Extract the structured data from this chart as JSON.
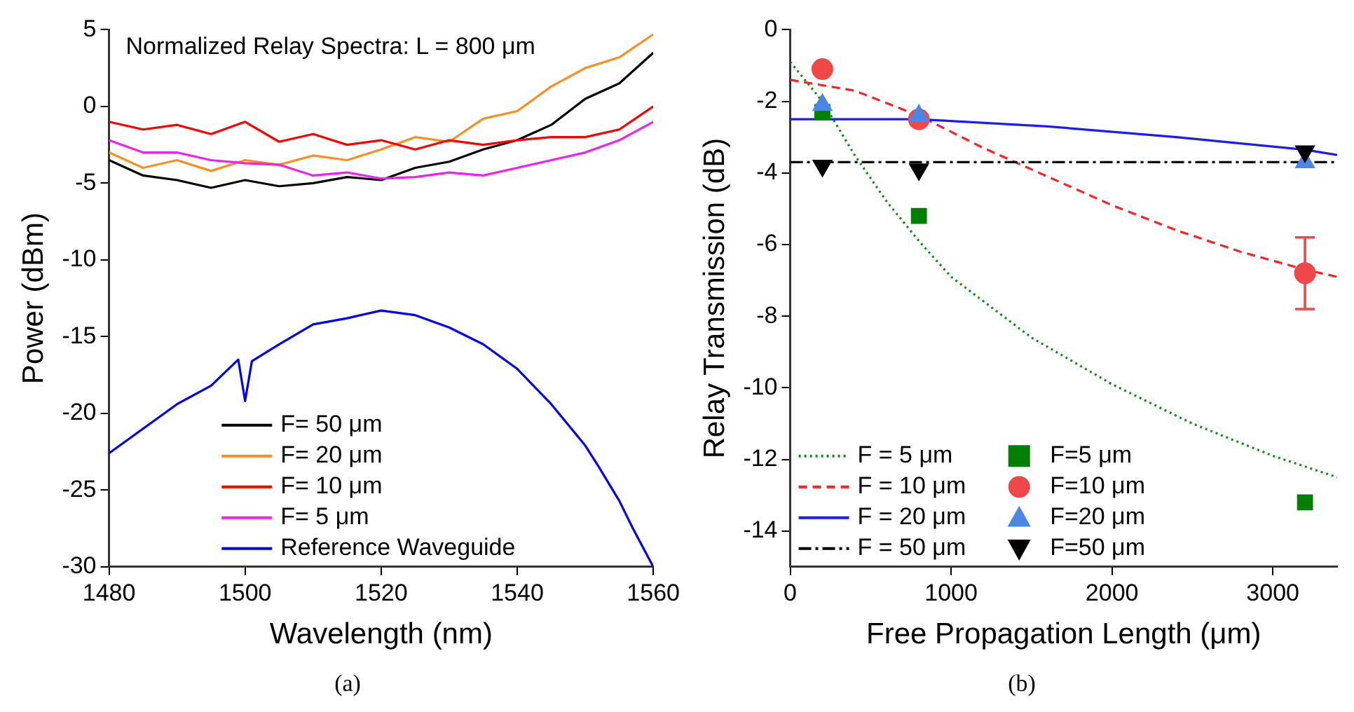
{
  "chart_data": [
    {
      "type": "line",
      "title": "Normalized Relay Spectra: L = 800 μm",
      "xlabel": "Wavelength (nm)",
      "ylabel": "Power (dBm)",
      "annotations": [
        "(a)"
      ],
      "legend": "bottom",
      "marker": "none",
      "x": [
        1480,
        1485,
        1490,
        1495,
        1500,
        1505,
        1510,
        1515,
        1520,
        1525,
        1530,
        1535,
        1540,
        1545,
        1550,
        1555,
        1560
      ],
      "xlim": [
        1480,
        1560
      ],
      "xticks": [
        1480,
        1500,
        1520,
        1540,
        1560
      ],
      "ylim": [
        -30,
        5
      ],
      "yticks": [
        -30,
        -25,
        -20,
        -15,
        -10,
        -5,
        0,
        5
      ],
      "series": [
        {
          "name": "F= 50 μm",
          "color": "#000000",
          "values": [
            -3.5,
            -4.5,
            -4.8,
            -5.3,
            -4.8,
            -5.2,
            -5.0,
            -4.6,
            -4.8,
            -4.0,
            -3.6,
            -2.8,
            -2.2,
            -1.2,
            0.5,
            1.5,
            3.5
          ]
        },
        {
          "name": "F= 20 μm",
          "color": "#f7901e",
          "values": [
            -3.0,
            -4.0,
            -3.5,
            -4.2,
            -3.5,
            -3.8,
            -3.2,
            -3.5,
            -2.8,
            -2.0,
            -2.3,
            -0.8,
            -0.3,
            1.3,
            2.5,
            3.2,
            4.7
          ]
        },
        {
          "name": "F= 10 μm",
          "color": "#ff0000",
          "values": [
            -1.0,
            -1.5,
            -1.2,
            -1.8,
            -1.0,
            -2.3,
            -1.8,
            -2.5,
            -2.2,
            -2.8,
            -2.2,
            -2.5,
            -2.2,
            -2.0,
            -2.0,
            -1.5,
            0.0
          ]
        },
        {
          "name": "F= 5 μm",
          "color": "#ee22ee",
          "values": [
            -2.2,
            -3.0,
            -3.0,
            -3.5,
            -3.7,
            -3.8,
            -4.5,
            -4.3,
            -4.7,
            -4.6,
            -4.3,
            -4.5,
            -4.0,
            -3.5,
            -3.0,
            -2.2,
            -1.0
          ]
        },
        {
          "name": "Reference Waveguide",
          "color": "#0000ff",
          "x": [
            1480,
            1485,
            1490,
            1495,
            1499,
            1500,
            1501,
            1505,
            1510,
            1515,
            1520,
            1525,
            1530,
            1535,
            1540,
            1545,
            1550,
            1552,
            1555,
            1557,
            1560
          ],
          "values": [
            -22.6,
            -21.0,
            -19.4,
            -18.2,
            -16.5,
            -19.2,
            -16.6,
            -15.5,
            -14.2,
            -13.8,
            -13.3,
            -13.6,
            -14.4,
            -15.5,
            -17.1,
            -19.4,
            -22.1,
            -23.5,
            -25.7,
            -27.5,
            -30.0
          ]
        }
      ]
    },
    {
      "type": "scatter",
      "xlabel": "Free Propagation Length (μm)",
      "ylabel": "Relay Transmission (dB)",
      "annotations": [
        "(b)"
      ],
      "legend": "bottom left",
      "xlim": [
        0,
        3400
      ],
      "xticks": [
        0,
        1000,
        2000,
        3000
      ],
      "ylim": [
        -15,
        0
      ],
      "yticks": [
        -14,
        -12,
        -10,
        -8,
        -6,
        -4,
        -2,
        0
      ],
      "series": [
        {
          "name": "F = 5 μm",
          "type": "line",
          "color": "#109010",
          "line_style": "dotted",
          "marker": "none",
          "x": [
            0,
            200,
            400,
            600,
            800,
            1000,
            1500,
            2000,
            2500,
            3000,
            3400
          ],
          "values": [
            -0.9,
            -2.0,
            -3.5,
            -4.8,
            -5.9,
            -6.9,
            -8.6,
            -9.9,
            -11.0,
            -11.9,
            -12.5
          ]
        },
        {
          "name": "F = 10 μm",
          "type": "line",
          "color": "#ff2020",
          "line_style": "dashed",
          "marker": "none",
          "x": [
            0,
            400,
            800,
            1200,
            1600,
            2000,
            2400,
            2800,
            3200,
            3400
          ],
          "values": [
            -1.4,
            -1.7,
            -2.4,
            -3.3,
            -4.1,
            -4.9,
            -5.6,
            -6.2,
            -6.7,
            -6.9
          ]
        },
        {
          "name": "F = 20 μm",
          "type": "line",
          "color": "#1a1aff",
          "line_style": "solid",
          "marker": "none",
          "x": [
            0,
            800,
            1600,
            2400,
            3200,
            3400
          ],
          "values": [
            -2.5,
            -2.5,
            -2.7,
            -3.0,
            -3.35,
            -3.5
          ]
        },
        {
          "name": "F = 50 μm",
          "type": "line",
          "color": "#000000",
          "line_style": "dashdot",
          "marker": "none",
          "x": [
            0,
            3400
          ],
          "values": [
            -3.7,
            -3.7
          ]
        },
        {
          "name": "F=5 μm",
          "color": "#007f00",
          "marker": "square",
          "x": [
            200,
            800,
            3200
          ],
          "values": [
            -2.3,
            -5.2,
            -13.2
          ]
        },
        {
          "name": "F=10 μm",
          "color": "#f04848",
          "marker": "circle",
          "x": [
            200,
            800,
            3200
          ],
          "values": [
            -1.1,
            -2.5,
            -6.8
          ],
          "errors": [
            null,
            null,
            [
              -7.8,
              -5.8
            ]
          ]
        },
        {
          "name": "F=20 μm",
          "color": "#4a86e8",
          "marker": "triangle",
          "x": [
            200,
            800,
            3200
          ],
          "values": [
            -2.1,
            -2.4,
            -3.7
          ]
        },
        {
          "name": "F=50 μm",
          "color": "#000000",
          "marker": "triangle-down",
          "x": [
            200,
            800,
            3200
          ],
          "values": [
            -3.8,
            -3.9,
            -3.4
          ]
        }
      ]
    }
  ]
}
